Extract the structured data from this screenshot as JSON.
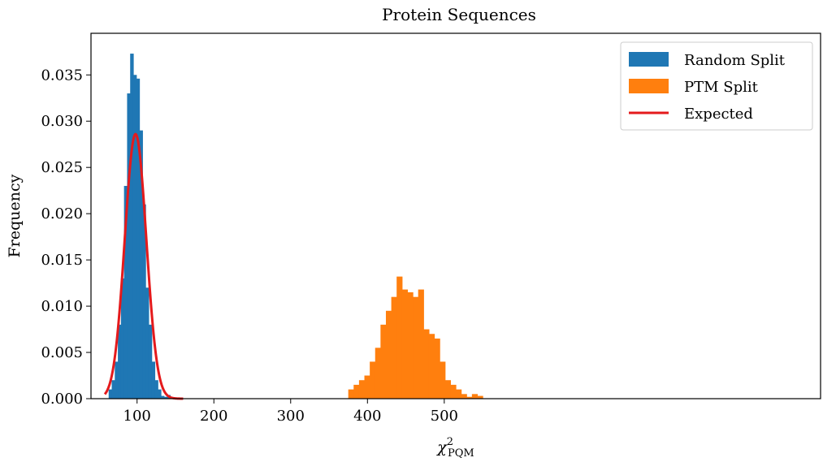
{
  "chart_data": {
    "type": "bar",
    "title": "Protein Sequences",
    "xlabel_base": "χ",
    "xlabel_sup": "2",
    "xlabel_sub": "PQM",
    "ylabel": "Frequency",
    "xlim": [
      40,
      990
    ],
    "ylim": [
      0,
      0.0395
    ],
    "x_ticks": [
      100,
      200,
      300,
      400,
      500
    ],
    "y_ticks": [
      0.0,
      0.005,
      0.01,
      0.015,
      0.02,
      0.025,
      0.03,
      0.035
    ],
    "x_tick_labels": [
      "100",
      "200",
      "300",
      "400",
      "500"
    ],
    "y_tick_labels": [
      "0.000",
      "0.005",
      "0.010",
      "0.015",
      "0.020",
      "0.025",
      "0.030",
      "0.035"
    ],
    "legend_position": "top-right",
    "legend": [
      "Random Split",
      "PTM Split",
      "Expected"
    ],
    "colors": {
      "random": "#1f77b4",
      "ptm": "#ff7f0e",
      "expected": "#e41a1c"
    },
    "series": [
      {
        "name": "Random Split",
        "kind": "histogram",
        "bin_edges": [
          63,
          67,
          71,
          75,
          79,
          83,
          87,
          91,
          95,
          99,
          103,
          107,
          111,
          115,
          119,
          123,
          127,
          131,
          135,
          139,
          143
        ],
        "values": [
          0.001,
          0.002,
          0.004,
          0.008,
          0.013,
          0.023,
          0.033,
          0.0373,
          0.035,
          0.0346,
          0.029,
          0.021,
          0.012,
          0.008,
          0.004,
          0.002,
          0.001,
          0.0003,
          0.0002,
          0.0004
        ]
      },
      {
        "name": "PTM Split",
        "kind": "histogram",
        "bin_edges": [
          375,
          382,
          389,
          396,
          403,
          410,
          417,
          424,
          431,
          438,
          445,
          452,
          459,
          466,
          473,
          480,
          487,
          494,
          501,
          508,
          515,
          522,
          529,
          536,
          543,
          550
        ],
        "values": [
          0.001,
          0.0015,
          0.002,
          0.0025,
          0.004,
          0.0055,
          0.008,
          0.0095,
          0.011,
          0.0132,
          0.0118,
          0.0115,
          0.011,
          0.0118,
          0.0075,
          0.007,
          0.0065,
          0.004,
          0.002,
          0.0015,
          0.001,
          0.0005,
          0.0002,
          0.0005,
          0.0003
        ]
      },
      {
        "name": "Expected",
        "kind": "curve",
        "mean": 98,
        "std": 14,
        "x_range": [
          58,
          160
        ],
        "peak": 0.0286
      }
    ]
  }
}
